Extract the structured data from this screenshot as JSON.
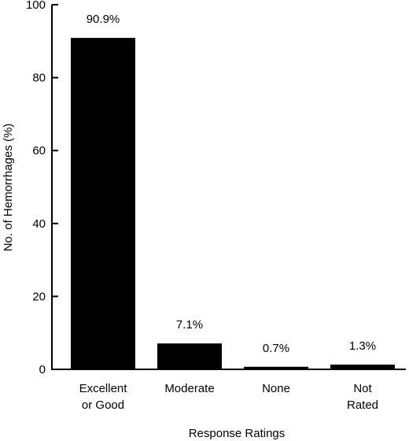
{
  "chart_data": {
    "type": "bar",
    "categories": [
      [
        "Excellent",
        "or Good"
      ],
      [
        "Moderate"
      ],
      [
        "None"
      ],
      [
        "Not",
        "Rated"
      ]
    ],
    "values": [
      90.9,
      7.1,
      0.7,
      1.3
    ],
    "data_labels": [
      "90.9%",
      "7.1%",
      "0.7%",
      "1.3%"
    ],
    "xlabel": "Response Ratings",
    "ylabel": "No. of Hemorrhages (%)",
    "ylim": [
      0,
      100
    ],
    "yticks": [
      0,
      20,
      40,
      60,
      80,
      100
    ],
    "ytick_labels": [
      "0",
      "20",
      "40",
      "60",
      "80",
      "100"
    ],
    "grid": false,
    "bar_color": "#000000"
  }
}
